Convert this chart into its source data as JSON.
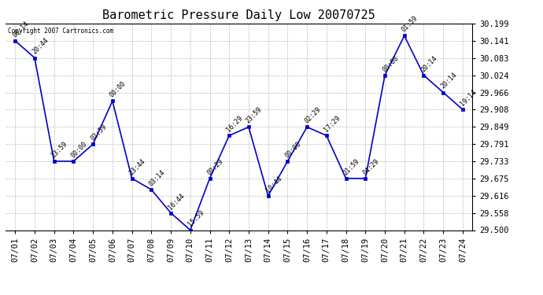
{
  "title": "Barometric Pressure Daily Low 20070725",
  "copyright": "Copyright 2007 Cartronics.com",
  "x_labels": [
    "07/01",
    "07/02",
    "07/03",
    "07/04",
    "07/05",
    "07/06",
    "07/07",
    "07/08",
    "07/09",
    "07/10",
    "07/11",
    "07/12",
    "07/13",
    "07/14",
    "07/15",
    "07/16",
    "07/17",
    "07/18",
    "07/19",
    "07/20",
    "07/21",
    "07/22",
    "07/23",
    "07/24"
  ],
  "x_values": [
    0,
    1,
    2,
    3,
    4,
    5,
    6,
    7,
    8,
    9,
    10,
    11,
    12,
    13,
    14,
    15,
    16,
    17,
    18,
    19,
    20,
    21,
    22,
    23
  ],
  "y_values": [
    30.141,
    30.083,
    29.733,
    29.733,
    29.791,
    29.937,
    29.675,
    29.637,
    29.558,
    29.5,
    29.675,
    29.82,
    29.849,
    29.616,
    29.733,
    29.849,
    29.82,
    29.675,
    29.675,
    30.024,
    30.158,
    30.024,
    29.966,
    29.908
  ],
  "time_labels": [
    "00:14",
    "20:44",
    "23:59",
    "00:00",
    "02:59",
    "00:00",
    "23:44",
    "03:14",
    "16:44",
    "15:59",
    "00:29",
    "16:29",
    "23:59",
    "10:44",
    "00:00",
    "02:29",
    "17:29",
    "21:59",
    "04:29",
    "00:00",
    "01:59",
    "20:14",
    "20:14",
    "19:14"
  ],
  "ylim": [
    29.5,
    30.199
  ],
  "yticks": [
    29.5,
    29.558,
    29.616,
    29.675,
    29.733,
    29.791,
    29.849,
    29.908,
    29.966,
    30.024,
    30.083,
    30.141,
    30.199
  ],
  "line_color": "#0000cc",
  "marker_color": "#0000cc",
  "bg_color": "#ffffff",
  "grid_color": "#aaaaaa",
  "title_fontsize": 11,
  "tick_fontsize": 7.5,
  "annotation_fontsize": 6,
  "figsize": [
    6.9,
    3.75
  ],
  "dpi": 100
}
